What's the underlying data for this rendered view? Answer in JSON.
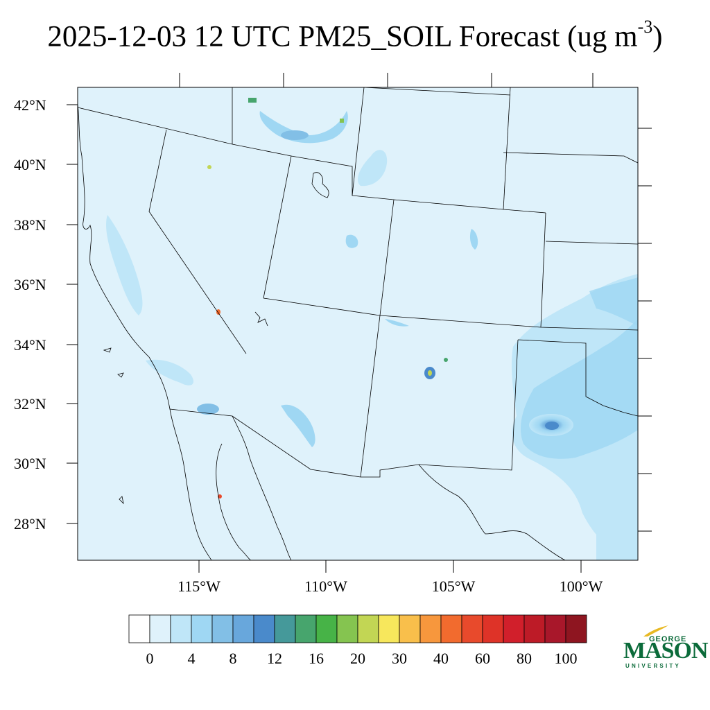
{
  "title": {
    "main": "2025-12-03 12 UTC PM25_SOIL Forecast (ug m",
    "superscript": "-3",
    "close": ")"
  },
  "map": {
    "lat_labels": [
      "42°N",
      "40°N",
      "38°N",
      "36°N",
      "34°N",
      "32°N",
      "30°N",
      "28°N"
    ],
    "lon_labels": [
      "115°W",
      "110°W",
      "105°W",
      "100°W"
    ],
    "background_color": "#dff2fb",
    "boundary_color": "#000000"
  },
  "colorbar": {
    "colors": [
      "#ffffff",
      "#dff2fb",
      "#bfe6f8",
      "#9fd7f3",
      "#82bfe6",
      "#68a7dc",
      "#4a8acb",
      "#45999a",
      "#47a56d",
      "#47b347",
      "#85c450",
      "#c2d654",
      "#f7e75c",
      "#f9bf4b",
      "#f7973d",
      "#f26b2e",
      "#e84a2c",
      "#de3328",
      "#d11f2b",
      "#bd1b27",
      "#a8172a",
      "#8e1520"
    ],
    "tick_labels": [
      "0",
      "4",
      "8",
      "12",
      "16",
      "20",
      "30",
      "40",
      "60",
      "80",
      "100"
    ]
  },
  "logo": {
    "top": "GEORGE",
    "main": "MASON",
    "bottom": "UNIVERSITY",
    "color": "#0b6b3a",
    "accent": "#e8b923"
  }
}
